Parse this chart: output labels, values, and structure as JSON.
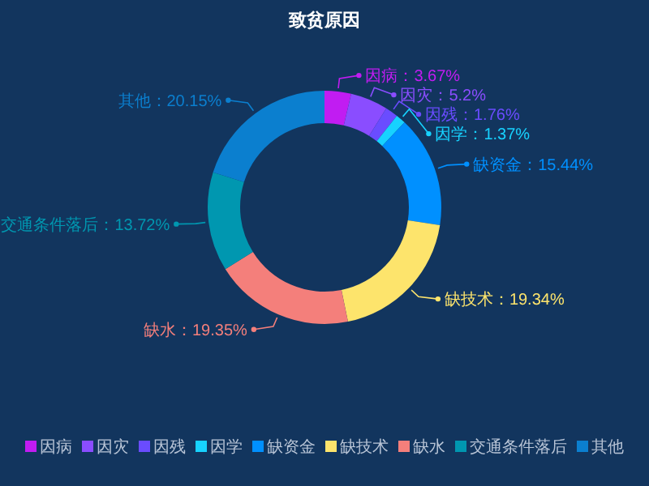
{
  "chart_data": {
    "type": "donut",
    "title": "致贫原因",
    "categories": [
      "因病",
      "因灾",
      "因残",
      "因学",
      "缺资金",
      "缺技术",
      "缺水",
      "交通条件落后",
      "其他"
    ],
    "values": [
      3.67,
      5.2,
      1.76,
      1.37,
      15.44,
      19.34,
      19.35,
      13.72,
      20.15
    ],
    "colors": [
      "#c11cf2",
      "#8a4dff",
      "#6a4cff",
      "#17d2ff",
      "#0090ff",
      "#fde46c",
      "#f47f7b",
      "#0097b0",
      "#0b7fcf"
    ],
    "value_labels": [
      "：3.67%",
      "：5.2%",
      "：1.76%",
      "：1.37%",
      "：15.44%",
      "：19.34%",
      "：19.35%",
      "：13.72%",
      "：20.15%"
    ],
    "legend": "bottom"
  }
}
